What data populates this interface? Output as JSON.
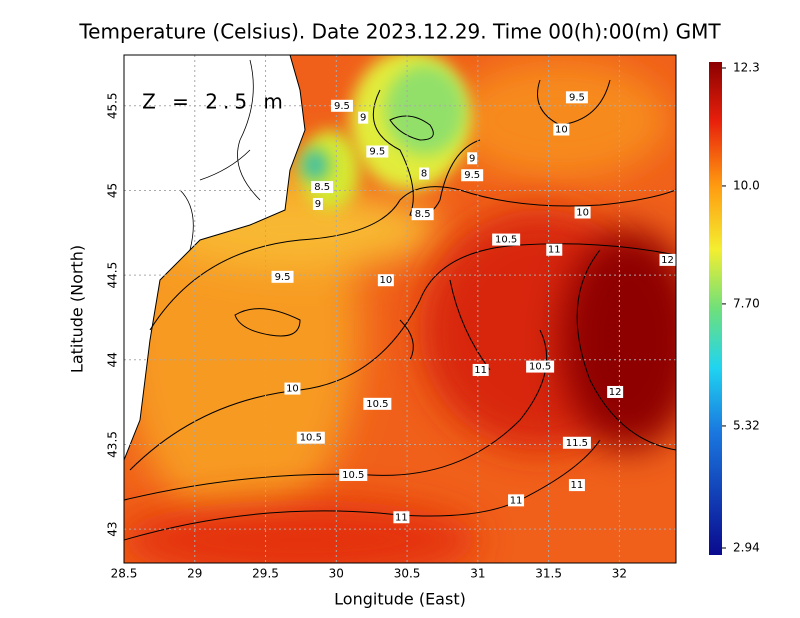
{
  "title": "Temperature (Celsius). Date 2023.12.29. Time 00(h):00(m) GMT",
  "annotation": "Z = 2.5 m",
  "x_axis": {
    "label": "Longitude (East)",
    "lim": [
      28.5,
      32.4
    ],
    "ticks": [
      28.5,
      29,
      29.5,
      30,
      30.5,
      31,
      31.5,
      32
    ]
  },
  "y_axis": {
    "label": "Latitude (North)",
    "lim": [
      42.8,
      45.8
    ],
    "ticks": [
      43,
      43.5,
      44,
      44.5,
      45,
      45.5
    ]
  },
  "grid": true,
  "colorbar": {
    "lim": [
      2.94,
      12.3
    ],
    "ticks": [
      12.3,
      {
        "value": 10,
        "label": "10.0"
      },
      {
        "value": 7.7,
        "label": "7.70"
      },
      5.32,
      2.94
    ]
  },
  "contour_labels": [
    {
      "value": 9.5,
      "lon": 30.04,
      "lat": 45.5
    },
    {
      "value": 9,
      "lon": 30.19,
      "lat": 45.43
    },
    {
      "value": 9.5,
      "lon": 30.29,
      "lat": 45.23
    },
    {
      "value": 9,
      "lon": 30.96,
      "lat": 45.19
    },
    {
      "value": 9.5,
      "lon": 30.96,
      "lat": 45.09
    },
    {
      "value": 8,
      "lon": 30.62,
      "lat": 45.1
    },
    {
      "value": 8.5,
      "lon": 30.61,
      "lat": 44.86
    },
    {
      "value": 8.5,
      "lon": 29.9,
      "lat": 45.02
    },
    {
      "value": 9,
      "lon": 29.87,
      "lat": 44.92
    },
    {
      "value": 9.5,
      "lon": 31.7,
      "lat": 45.55
    },
    {
      "value": 10,
      "lon": 31.59,
      "lat": 45.36
    },
    {
      "value": 10,
      "lon": 31.74,
      "lat": 44.87
    },
    {
      "value": 10.5,
      "lon": 31.2,
      "lat": 44.71
    },
    {
      "value": 11,
      "lon": 31.54,
      "lat": 44.65
    },
    {
      "value": 12,
      "lon": 32.34,
      "lat": 44.59
    },
    {
      "value": 9.5,
      "lon": 29.62,
      "lat": 44.49
    },
    {
      "value": 10,
      "lon": 30.35,
      "lat": 44.47
    },
    {
      "value": 11,
      "lon": 31.02,
      "lat": 43.94
    },
    {
      "value": 10.5,
      "lon": 31.44,
      "lat": 43.96
    },
    {
      "value": 12,
      "lon": 31.97,
      "lat": 43.81
    },
    {
      "value": 10,
      "lon": 29.69,
      "lat": 43.83
    },
    {
      "value": 10.5,
      "lon": 30.29,
      "lat": 43.74
    },
    {
      "value": 11.5,
      "lon": 31.7,
      "lat": 43.51
    },
    {
      "value": 10.5,
      "lon": 29.82,
      "lat": 43.54
    },
    {
      "value": 10.5,
      "lon": 30.12,
      "lat": 43.32
    },
    {
      "value": 11,
      "lon": 31.27,
      "lat": 43.17
    },
    {
      "value": 11,
      "lon": 31.7,
      "lat": 43.26
    },
    {
      "value": 11,
      "lon": 30.46,
      "lat": 43.07
    }
  ]
}
